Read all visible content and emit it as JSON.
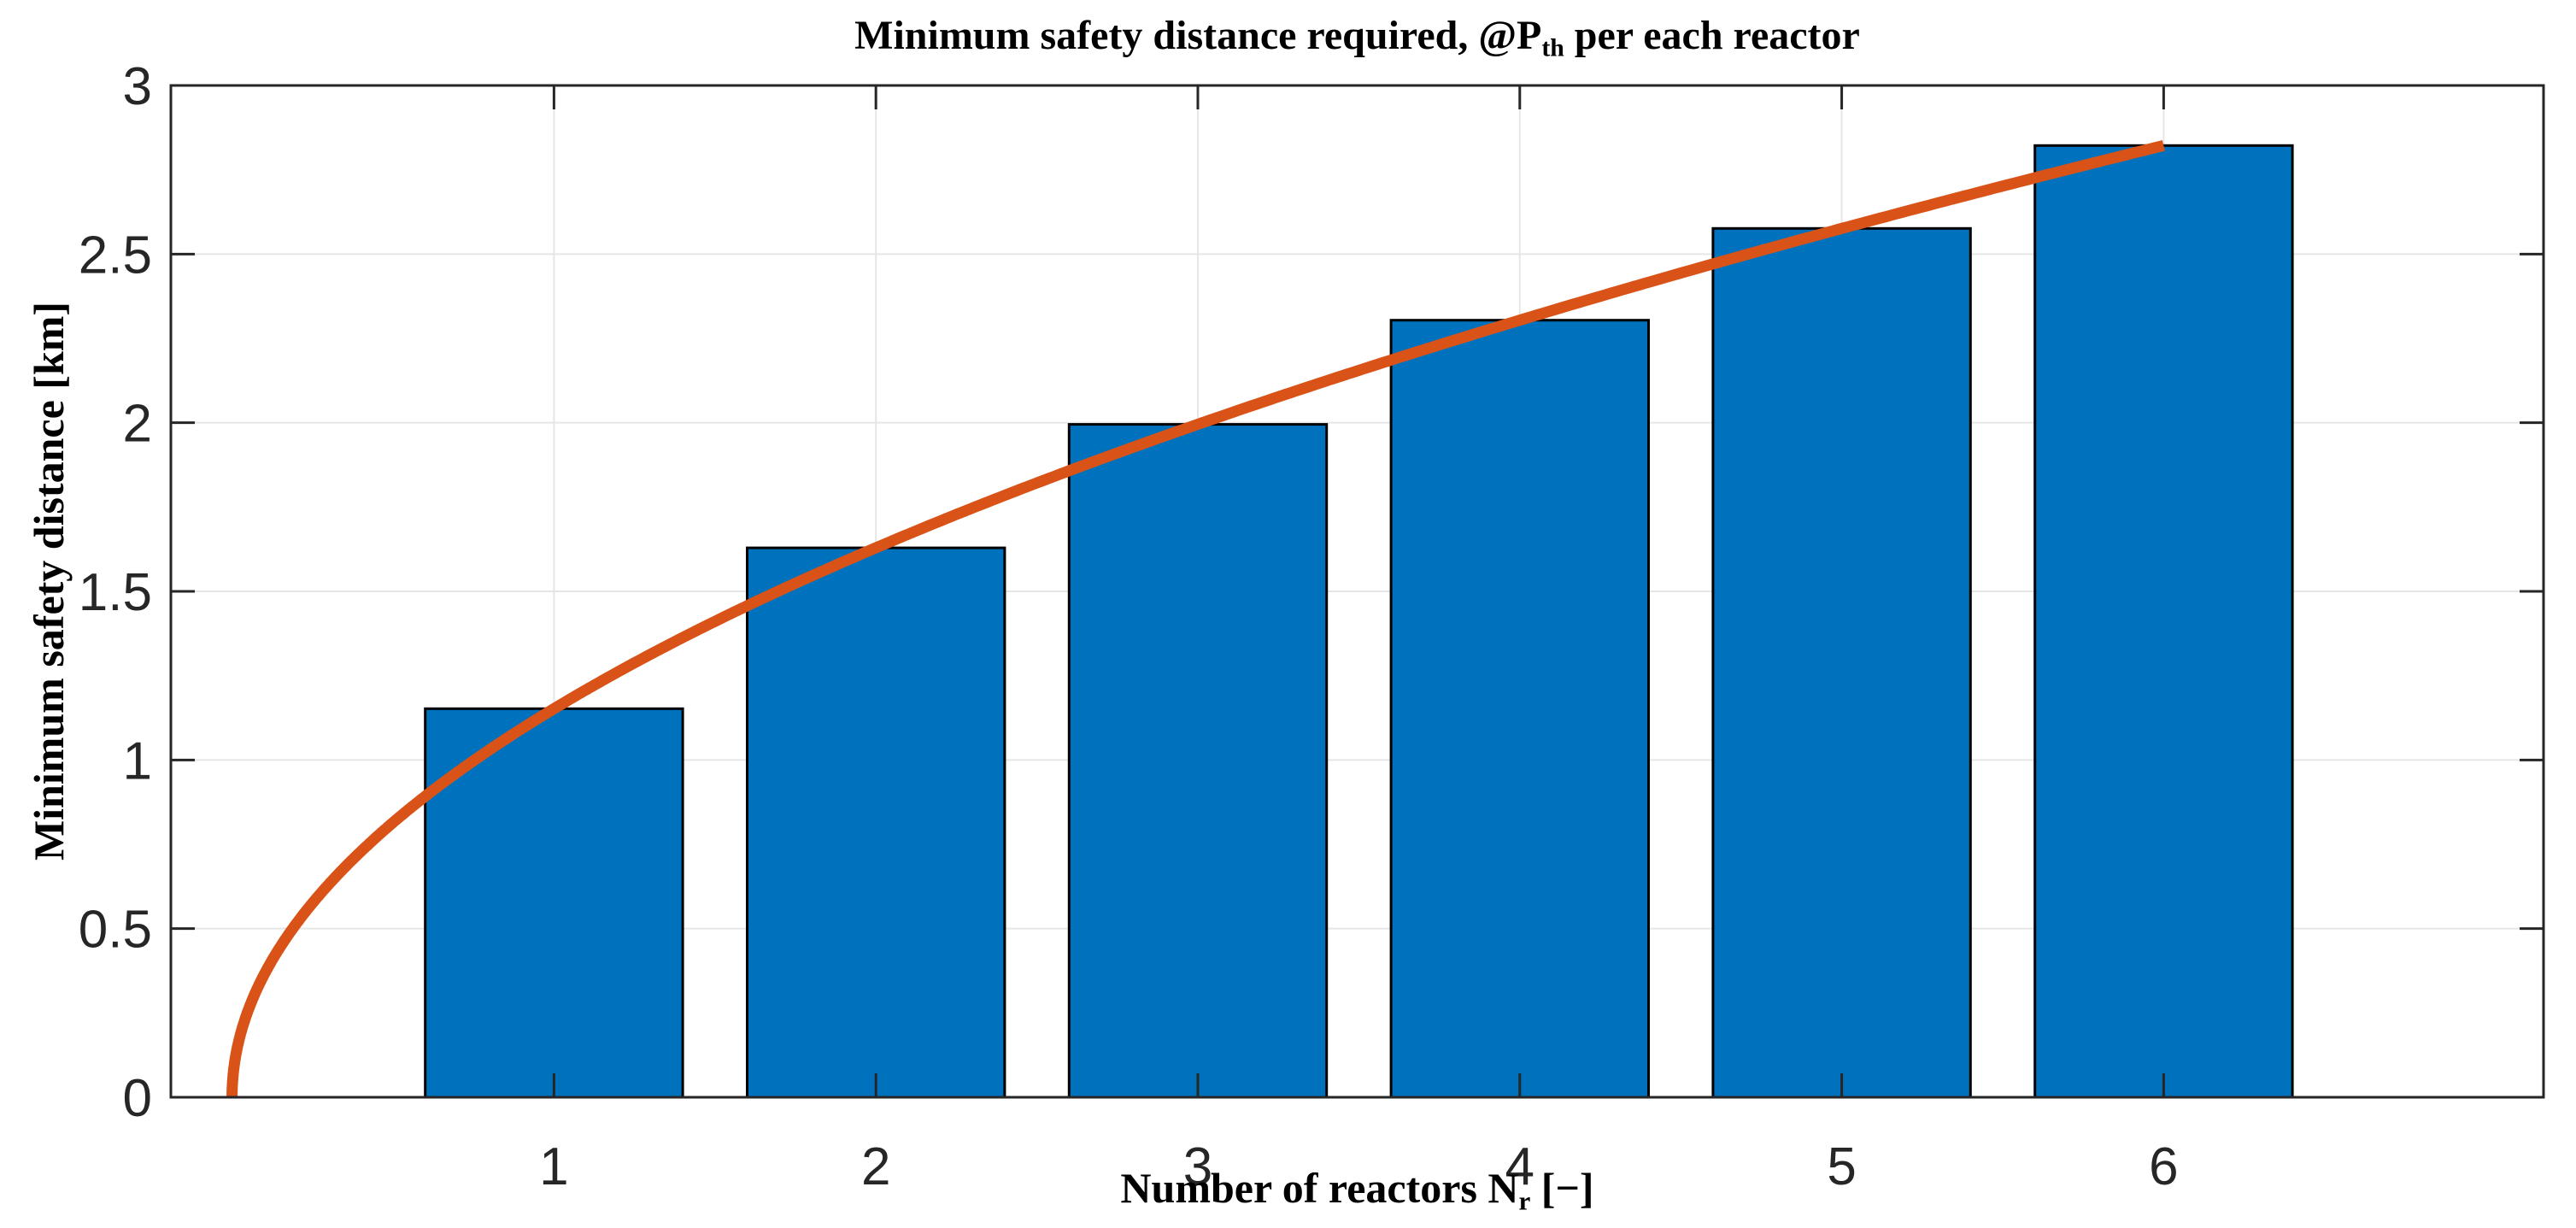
{
  "title": {
    "pre": "Minimum safety distance required, @P",
    "sub": "th",
    "post": " per each reactor"
  },
  "xlabel": {
    "pre": "Number of reactors N",
    "sub": "r",
    "post": " [−]"
  },
  "ylabel": "Minimum safety distance [km]",
  "chart_data": {
    "type": "bar",
    "title": "Minimum safety distance required, @P_th per each reactor",
    "xlabel": "Number of reactors N_r [−]",
    "ylabel": "Minimum safety distance [km]",
    "categories": [
      1,
      2,
      3,
      4,
      5,
      6
    ],
    "series": [
      {
        "name": "minimum-safety-distance-bars",
        "type": "bar",
        "values": [
          1.152,
          1.629,
          1.995,
          2.304,
          2.576,
          2.822
        ]
      },
      {
        "name": "sqrt-trend-curve",
        "type": "line",
        "formula": "y = 1.152 * sqrt(x)",
        "coefficient": 1.152,
        "x_min": 0,
        "x_max": 6
      }
    ],
    "bar_width": 0.8,
    "xlim": [
      -0.19,
      7.18
    ],
    "ylim": [
      0,
      3
    ],
    "xticks": [
      1,
      2,
      3,
      4,
      5,
      6
    ],
    "xtick_labels": [
      "1",
      "2",
      "3",
      "4",
      "5",
      "6"
    ],
    "yticks": [
      0,
      0.5,
      1,
      1.5,
      2,
      2.5,
      3
    ],
    "ytick_labels": [
      "0",
      "0.5",
      "1",
      "1.5",
      "2",
      "2.5",
      "3"
    ],
    "grid": true,
    "legend": null,
    "colors": {
      "bar_fill": "#0072BD",
      "bar_edge": "#000000",
      "curve": "#D95319",
      "grid": "#E6E6E6",
      "axis": "#262626",
      "tick_label": "#262626",
      "background": "#FFFFFF"
    }
  }
}
